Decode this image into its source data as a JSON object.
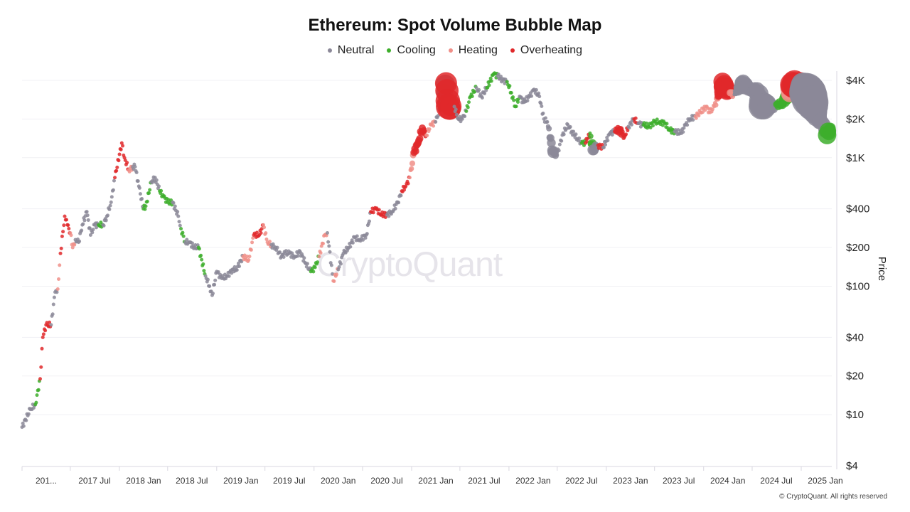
{
  "chart_data": {
    "type": "scatter",
    "title": "Ethereum: Spot Volume Bubble Map",
    "ylabel": "Price",
    "yscale": "log",
    "ylim": [
      4,
      4000
    ],
    "yticks": [
      {
        "v": 4000,
        "label": "$4K"
      },
      {
        "v": 2000,
        "label": "$2K"
      },
      {
        "v": 1000,
        "label": "$1K"
      },
      {
        "v": 400,
        "label": "$400"
      },
      {
        "v": 200,
        "label": "$200"
      },
      {
        "v": 100,
        "label": "$100"
      },
      {
        "v": 40,
        "label": "$40"
      },
      {
        "v": 20,
        "label": "$20"
      },
      {
        "v": 10,
        "label": "$10"
      },
      {
        "v": 4,
        "label": "$4"
      }
    ],
    "xticks": [
      {
        "d": "2017-01-01",
        "label": "201..."
      },
      {
        "d": "2017-07-01",
        "label": "2017 Jul"
      },
      {
        "d": "2018-01-01",
        "label": "2018 Jan"
      },
      {
        "d": "2018-07-01",
        "label": "2018 Jul"
      },
      {
        "d": "2019-01-01",
        "label": "2019 Jan"
      },
      {
        "d": "2019-07-01",
        "label": "2019 Jul"
      },
      {
        "d": "2020-01-01",
        "label": "2020 Jan"
      },
      {
        "d": "2020-07-01",
        "label": "2020 Jul"
      },
      {
        "d": "2021-01-01",
        "label": "2021 Jan"
      },
      {
        "d": "2021-07-01",
        "label": "2021 Jul"
      },
      {
        "d": "2022-01-01",
        "label": "2022 Jan"
      },
      {
        "d": "2022-07-01",
        "label": "2022 Jul"
      },
      {
        "d": "2023-01-01",
        "label": "2023 Jan"
      },
      {
        "d": "2023-07-01",
        "label": "2023 Jul"
      },
      {
        "d": "2024-01-01",
        "label": "2024 Jan"
      },
      {
        "d": "2024-07-01",
        "label": "2024 Jul"
      },
      {
        "d": "2025-01-01",
        "label": "2025 Jan"
      }
    ],
    "grid": true,
    "legend_position": "top-center",
    "legend": [
      {
        "key": "N",
        "name": "Neutral",
        "color": "#8b8898"
      },
      {
        "key": "C",
        "name": "Cooling",
        "color": "#3dae2b"
      },
      {
        "key": "H",
        "name": "Heating",
        "color": "#f08f88"
      },
      {
        "key": "O",
        "name": "Overheating",
        "color": "#e0282a"
      }
    ],
    "points": [
      [
        "2017-01-01",
        8,
        "N",
        1
      ],
      [
        "2017-02-01",
        11,
        "N",
        1
      ],
      [
        "2017-02-20",
        12,
        "C",
        1
      ],
      [
        "2017-03-10",
        19,
        "O",
        1
      ],
      [
        "2017-03-20",
        40,
        "O",
        1
      ],
      [
        "2017-04-01",
        50,
        "O",
        1
      ],
      [
        "2017-04-20",
        50,
        "N",
        1
      ],
      [
        "2017-05-05",
        90,
        "N",
        1
      ],
      [
        "2017-05-15",
        95,
        "H",
        1
      ],
      [
        "2017-05-25",
        180,
        "O",
        1
      ],
      [
        "2017-06-10",
        350,
        "O",
        1
      ],
      [
        "2017-06-20",
        300,
        "O",
        1
      ],
      [
        "2017-07-01",
        260,
        "H",
        1
      ],
      [
        "2017-07-10",
        200,
        "H",
        1
      ],
      [
        "2017-07-20",
        230,
        "N",
        1
      ],
      [
        "2017-08-01",
        220,
        "N",
        1
      ],
      [
        "2017-08-15",
        300,
        "N",
        1
      ],
      [
        "2017-09-01",
        380,
        "N",
        1
      ],
      [
        "2017-09-15",
        250,
        "N",
        1
      ],
      [
        "2017-10-01",
        300,
        "N",
        1
      ],
      [
        "2017-10-15",
        300,
        "C",
        1
      ],
      [
        "2017-11-01",
        300,
        "N",
        1
      ],
      [
        "2017-11-15",
        350,
        "N",
        1
      ],
      [
        "2017-12-01",
        450,
        "N",
        1
      ],
      [
        "2017-12-15",
        700,
        "O",
        1
      ],
      [
        "2018-01-10",
        1300,
        "O",
        1
      ],
      [
        "2018-01-20",
        1000,
        "O",
        1
      ],
      [
        "2018-02-05",
        800,
        "H",
        1
      ],
      [
        "2018-02-20",
        850,
        "N",
        1
      ],
      [
        "2018-03-01",
        850,
        "N",
        1
      ],
      [
        "2018-03-15",
        600,
        "N",
        1
      ],
      [
        "2018-04-01",
        400,
        "C",
        1
      ],
      [
        "2018-04-10",
        420,
        "C",
        1
      ],
      [
        "2018-05-01",
        650,
        "N",
        1
      ],
      [
        "2018-05-15",
        700,
        "N",
        1
      ],
      [
        "2018-06-01",
        550,
        "C",
        1
      ],
      [
        "2018-06-15",
        500,
        "C",
        1
      ],
      [
        "2018-07-01",
        450,
        "C",
        1
      ],
      [
        "2018-07-20",
        450,
        "N",
        1
      ],
      [
        "2018-08-10",
        350,
        "N",
        1
      ],
      [
        "2018-08-20",
        280,
        "C",
        1
      ],
      [
        "2018-09-05",
        220,
        "N",
        1
      ],
      [
        "2018-09-20",
        220,
        "N",
        1
      ],
      [
        "2018-10-10",
        200,
        "N",
        1
      ],
      [
        "2018-10-25",
        200,
        "C",
        1
      ],
      [
        "2018-11-20",
        120,
        "N",
        1
      ],
      [
        "2018-12-05",
        100,
        "N",
        1
      ],
      [
        "2018-12-15",
        85,
        "N",
        1
      ],
      [
        "2019-01-01",
        130,
        "N",
        1
      ],
      [
        "2019-01-20",
        115,
        "N",
        1
      ],
      [
        "2019-02-10",
        120,
        "N",
        1
      ],
      [
        "2019-03-01",
        135,
        "N",
        1
      ],
      [
        "2019-03-15",
        135,
        "N",
        1
      ],
      [
        "2019-04-10",
        170,
        "H",
        1
      ],
      [
        "2019-05-01",
        160,
        "H",
        1
      ],
      [
        "2019-05-20",
        250,
        "O",
        1
      ],
      [
        "2019-06-10",
        250,
        "O",
        1
      ],
      [
        "2019-06-25",
        300,
        "H",
        1
      ],
      [
        "2019-07-10",
        220,
        "H",
        1
      ],
      [
        "2019-07-25",
        210,
        "N",
        1
      ],
      [
        "2019-08-10",
        200,
        "N",
        1
      ],
      [
        "2019-09-01",
        170,
        "N",
        1
      ],
      [
        "2019-09-15",
        180,
        "N",
        1
      ],
      [
        "2019-10-01",
        180,
        "N",
        1
      ],
      [
        "2019-10-20",
        170,
        "N",
        1
      ],
      [
        "2019-11-10",
        185,
        "N",
        1
      ],
      [
        "2019-12-01",
        150,
        "N",
        1
      ],
      [
        "2019-12-20",
        130,
        "C",
        1
      ],
      [
        "2020-01-05",
        140,
        "C",
        1
      ],
      [
        "2020-01-20",
        170,
        "H",
        1
      ],
      [
        "2020-02-10",
        250,
        "H",
        1
      ],
      [
        "2020-02-20",
        260,
        "N",
        1
      ],
      [
        "2020-03-13",
        110,
        "H",
        1
      ],
      [
        "2020-04-01",
        135,
        "N",
        1
      ],
      [
        "2020-04-20",
        180,
        "N",
        1
      ],
      [
        "2020-05-10",
        200,
        "N",
        1
      ],
      [
        "2020-06-01",
        240,
        "N",
        1
      ],
      [
        "2020-06-20",
        230,
        "N",
        1
      ],
      [
        "2020-07-15",
        250,
        "N",
        1
      ],
      [
        "2020-08-01",
        380,
        "O",
        1
      ],
      [
        "2020-08-20",
        400,
        "O",
        1
      ],
      [
        "2020-09-10",
        360,
        "O",
        1
      ],
      [
        "2020-10-01",
        360,
        "N",
        1
      ],
      [
        "2020-10-20",
        380,
        "N",
        1
      ],
      [
        "2020-11-10",
        450,
        "N",
        1
      ],
      [
        "2020-11-25",
        550,
        "O",
        1
      ],
      [
        "2020-12-10",
        600,
        "O",
        1
      ],
      [
        "2020-12-25",
        700,
        "H",
        1
      ],
      [
        "2021-01-10",
        1100,
        "O",
        2
      ],
      [
        "2021-01-25",
        1300,
        "O",
        2
      ],
      [
        "2021-02-10",
        1700,
        "O",
        2
      ],
      [
        "2021-02-25",
        1500,
        "H",
        1
      ],
      [
        "2021-03-15",
        1800,
        "H",
        1
      ],
      [
        "2021-04-01",
        1900,
        "N",
        1
      ],
      [
        "2021-04-20",
        2500,
        "N",
        1
      ],
      [
        "2021-05-10",
        3800,
        "O",
        6
      ],
      [
        "2021-05-20",
        2500,
        "O",
        7
      ],
      [
        "2021-06-10",
        2500,
        "N",
        1
      ],
      [
        "2021-06-25",
        2000,
        "N",
        1
      ],
      [
        "2021-07-10",
        2000,
        "N",
        1
      ],
      [
        "2021-07-25",
        2300,
        "C",
        1
      ],
      [
        "2021-08-10",
        3000,
        "C",
        1
      ],
      [
        "2021-09-01",
        3500,
        "N",
        1
      ],
      [
        "2021-09-20",
        3000,
        "N",
        1
      ],
      [
        "2021-10-10",
        3500,
        "C",
        1
      ],
      [
        "2021-11-05",
        4500,
        "C",
        1
      ],
      [
        "2021-11-20",
        4300,
        "N",
        1
      ],
      [
        "2021-12-10",
        4000,
        "N",
        1
      ],
      [
        "2021-12-25",
        3900,
        "C",
        1
      ],
      [
        "2022-01-10",
        3200,
        "C",
        1
      ],
      [
        "2022-01-25",
        2500,
        "C",
        1
      ],
      [
        "2022-02-10",
        3000,
        "N",
        1
      ],
      [
        "2022-02-25",
        2700,
        "N",
        1
      ],
      [
        "2022-03-20",
        3000,
        "N",
        1
      ],
      [
        "2022-04-05",
        3400,
        "N",
        1
      ],
      [
        "2022-04-25",
        3000,
        "N",
        1
      ],
      [
        "2022-05-12",
        2000,
        "N",
        1
      ],
      [
        "2022-05-25",
        1900,
        "N",
        1
      ],
      [
        "2022-06-15",
        1100,
        "N",
        3
      ],
      [
        "2022-07-01",
        1050,
        "N",
        1
      ],
      [
        "2022-07-20",
        1500,
        "N",
        1
      ],
      [
        "2022-08-10",
        1800,
        "N",
        1
      ],
      [
        "2022-08-25",
        1600,
        "N",
        1
      ],
      [
        "2022-09-15",
        1400,
        "N",
        1
      ],
      [
        "2022-10-01",
        1300,
        "C",
        1
      ],
      [
        "2022-10-15",
        1300,
        "O",
        1
      ],
      [
        "2022-11-01",
        1550,
        "C",
        1
      ],
      [
        "2022-11-12",
        1150,
        "N",
        3
      ],
      [
        "2022-12-01",
        1250,
        "O",
        1
      ],
      [
        "2022-12-20",
        1200,
        "N",
        1
      ],
      [
        "2023-01-15",
        1550,
        "N",
        1
      ],
      [
        "2023-02-01",
        1600,
        "O",
        1
      ],
      [
        "2023-02-20",
        1650,
        "O",
        2
      ],
      [
        "2023-03-10",
        1450,
        "O",
        1
      ],
      [
        "2023-03-25",
        1750,
        "N",
        1
      ],
      [
        "2023-04-15",
        2000,
        "O",
        1
      ],
      [
        "2023-05-01",
        1850,
        "N",
        1
      ],
      [
        "2023-05-20",
        1800,
        "C",
        1
      ],
      [
        "2023-06-10",
        1750,
        "C",
        1
      ],
      [
        "2023-07-01",
        1900,
        "C",
        1
      ],
      [
        "2023-07-20",
        1900,
        "C",
        1
      ],
      [
        "2023-08-10",
        1850,
        "C",
        1
      ],
      [
        "2023-08-25",
        1650,
        "C",
        1
      ],
      [
        "2023-09-15",
        1600,
        "N",
        1
      ],
      [
        "2023-10-10",
        1550,
        "N",
        1
      ],
      [
        "2023-10-25",
        1800,
        "N",
        1
      ],
      [
        "2023-11-10",
        2000,
        "N",
        1
      ],
      [
        "2023-12-01",
        2100,
        "H",
        1
      ],
      [
        "2023-12-20",
        2250,
        "H",
        1
      ],
      [
        "2024-01-10",
        2500,
        "H",
        1
      ],
      [
        "2024-01-25",
        2250,
        "H",
        1
      ],
      [
        "2024-02-10",
        2500,
        "H",
        1
      ],
      [
        "2024-02-25",
        3000,
        "O",
        2
      ],
      [
        "2024-03-12",
        3900,
        "O",
        5
      ],
      [
        "2024-03-25",
        3400,
        "O",
        5
      ],
      [
        "2024-04-10",
        3200,
        "H",
        2
      ],
      [
        "2024-04-25",
        3100,
        "N",
        1
      ],
      [
        "2024-05-25",
        3800,
        "N",
        4
      ],
      [
        "2024-06-10",
        3600,
        "N",
        4
      ],
      [
        "2024-06-25",
        3300,
        "N",
        2
      ],
      [
        "2024-07-20",
        3400,
        "N",
        4
      ],
      [
        "2024-08-05",
        2500,
        "N",
        7
      ],
      [
        "2024-08-25",
        2600,
        "N",
        5
      ],
      [
        "2024-09-15",
        2400,
        "N",
        2
      ],
      [
        "2024-10-01",
        2600,
        "C",
        2
      ],
      [
        "2024-10-20",
        2600,
        "C",
        2
      ],
      [
        "2024-11-15",
        3200,
        "H",
        4
      ],
      [
        "2024-12-01",
        3700,
        "O",
        7
      ],
      [
        "2024-12-15",
        3700,
        "O",
        6
      ],
      [
        "2025-01-05",
        3600,
        "N",
        6
      ],
      [
        "2025-01-25",
        3200,
        "N",
        10
      ],
      [
        "2025-02-10",
        2700,
        "N",
        9
      ],
      [
        "2025-02-25",
        2300,
        "N",
        6
      ],
      [
        "2025-03-10",
        1900,
        "N",
        4
      ],
      [
        "2025-03-25",
        2000,
        "N",
        2
      ],
      [
        "2025-04-08",
        1500,
        "C",
        5
      ],
      [
        "2025-04-20",
        1700,
        "C",
        3
      ]
    ]
  },
  "watermark": "CryptoQuant",
  "credit": "© CryptoQuant. All rights reserved"
}
